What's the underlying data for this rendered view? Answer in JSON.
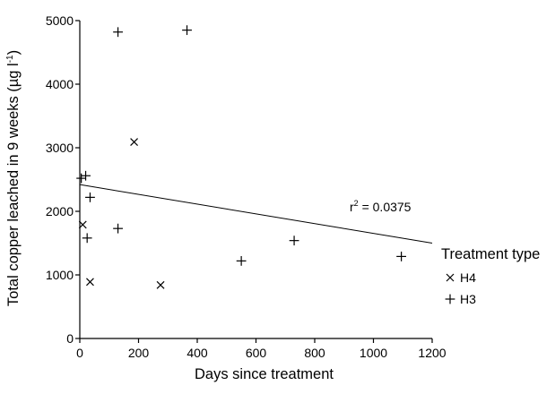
{
  "chart_data": {
    "type": "scatter",
    "xlabel": "Days since treatment",
    "ylabel": "Total copper leached in 9 weeks (µg l",
    "ylabel_sup": "-1",
    "ylabel_close": ")",
    "xlim": [
      0,
      1200
    ],
    "ylim": [
      0,
      5000
    ],
    "xticks": [
      0,
      200,
      400,
      600,
      800,
      1000,
      1200
    ],
    "yticks": [
      0,
      1000,
      2000,
      3000,
      4000,
      5000
    ],
    "grid": false,
    "legend": {
      "title": "Treatment type",
      "placement": "right",
      "entries": [
        {
          "label": "H4",
          "marker": "x"
        },
        {
          "label": "H3",
          "marker": "+"
        }
      ]
    },
    "series": [
      {
        "name": "H4",
        "marker": "x",
        "points": [
          {
            "x": 10,
            "y": 1790
          },
          {
            "x": 35,
            "y": 890
          },
          {
            "x": 185,
            "y": 3090
          },
          {
            "x": 275,
            "y": 840
          }
        ]
      },
      {
        "name": "H3",
        "marker": "+",
        "points": [
          {
            "x": 5,
            "y": 2520
          },
          {
            "x": 20,
            "y": 2560
          },
          {
            "x": 25,
            "y": 1580
          },
          {
            "x": 35,
            "y": 2220
          },
          {
            "x": 130,
            "y": 4820
          },
          {
            "x": 130,
            "y": 1730
          },
          {
            "x": 365,
            "y": 4850
          },
          {
            "x": 550,
            "y": 1220
          },
          {
            "x": 730,
            "y": 1540
          },
          {
            "x": 1095,
            "y": 1290
          }
        ]
      }
    ],
    "trendline": {
      "type": "linear",
      "start": {
        "x": 0,
        "y": 2420
      },
      "end": {
        "x": 1200,
        "y": 1500
      },
      "label_prefix": "r",
      "label_sup": "2",
      "label_value": " = 0.0375"
    }
  }
}
